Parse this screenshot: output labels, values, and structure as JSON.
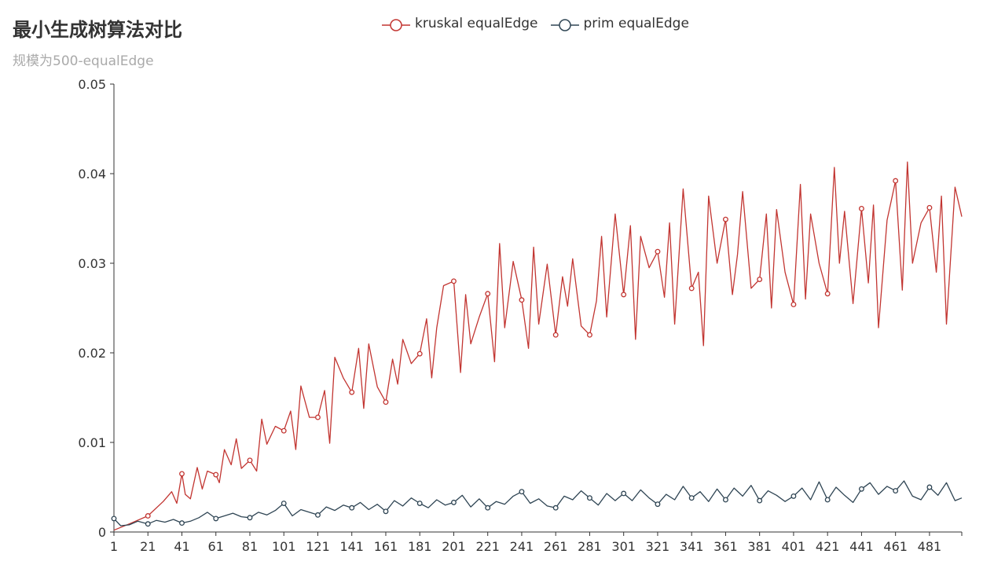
{
  "chart_data": {
    "type": "line",
    "title": "最小生成树算法对比",
    "subtitle": "规模为500-equalEdge",
    "legend_position": "top-center",
    "grid": false,
    "x_start": 1,
    "x_end": 500,
    "x_ticks": [
      1,
      21,
      41,
      61,
      81,
      101,
      121,
      141,
      161,
      181,
      201,
      221,
      241,
      261,
      281,
      301,
      321,
      341,
      361,
      381,
      401,
      421,
      441,
      461,
      481
    ],
    "y_ticks": [
      0,
      0.01,
      0.02,
      0.03,
      0.04,
      0.05
    ],
    "ylim": [
      0,
      0.05
    ],
    "series": [
      {
        "name": "kruskal equalEdge",
        "color": "#c23531",
        "x": [
          1,
          10,
          21,
          30,
          35,
          38,
          41,
          43,
          46,
          50,
          53,
          56,
          61,
          63,
          66,
          70,
          73,
          76,
          81,
          85,
          88,
          91,
          96,
          101,
          105,
          108,
          111,
          116,
          121,
          125,
          128,
          131,
          136,
          141,
          145,
          148,
          151,
          156,
          161,
          165,
          168,
          171,
          176,
          181,
          185,
          188,
          191,
          195,
          201,
          205,
          208,
          211,
          216,
          221,
          225,
          228,
          231,
          236,
          241,
          245,
          248,
          251,
          256,
          261,
          265,
          268,
          271,
          276,
          281,
          285,
          288,
          291,
          296,
          301,
          305,
          308,
          311,
          316,
          321,
          325,
          328,
          331,
          336,
          341,
          345,
          348,
          351,
          356,
          361,
          365,
          368,
          371,
          376,
          381,
          385,
          388,
          391,
          396,
          401,
          405,
          408,
          411,
          416,
          421,
          425,
          428,
          431,
          436,
          441,
          445,
          448,
          451,
          456,
          461,
          465,
          468,
          471,
          476,
          481,
          485,
          488,
          491,
          496,
          500
        ],
        "values": [
          0.0002,
          0.0009,
          0.0018,
          0.0034,
          0.0045,
          0.0032,
          0.0065,
          0.0042,
          0.0037,
          0.0072,
          0.0048,
          0.0068,
          0.0064,
          0.0055,
          0.0092,
          0.0075,
          0.0104,
          0.0071,
          0.008,
          0.0068,
          0.0126,
          0.0098,
          0.0118,
          0.0113,
          0.0135,
          0.0092,
          0.0163,
          0.0128,
          0.0128,
          0.0158,
          0.0099,
          0.0195,
          0.0172,
          0.0156,
          0.0205,
          0.0138,
          0.021,
          0.0162,
          0.0145,
          0.0193,
          0.0165,
          0.0215,
          0.0188,
          0.0199,
          0.0238,
          0.0172,
          0.0228,
          0.0275,
          0.028,
          0.0178,
          0.0265,
          0.021,
          0.024,
          0.0266,
          0.019,
          0.0322,
          0.0228,
          0.0302,
          0.0259,
          0.0205,
          0.0318,
          0.0232,
          0.0299,
          0.022,
          0.0285,
          0.0252,
          0.0305,
          0.023,
          0.022,
          0.0258,
          0.033,
          0.024,
          0.0355,
          0.0265,
          0.0342,
          0.0215,
          0.033,
          0.0295,
          0.0313,
          0.0262,
          0.0345,
          0.0232,
          0.0383,
          0.0272,
          0.029,
          0.0208,
          0.0375,
          0.03,
          0.0349,
          0.0265,
          0.031,
          0.038,
          0.0272,
          0.0282,
          0.0355,
          0.025,
          0.036,
          0.029,
          0.0254,
          0.0388,
          0.026,
          0.0355,
          0.03,
          0.0266,
          0.0407,
          0.03,
          0.0358,
          0.0255,
          0.0361,
          0.0278,
          0.0365,
          0.0228,
          0.0348,
          0.0392,
          0.027,
          0.0413,
          0.03,
          0.0345,
          0.0362,
          0.029,
          0.0375,
          0.0232,
          0.0385,
          0.0352
        ]
      },
      {
        "name": "prim equalEdge",
        "color": "#2f4554",
        "x": [
          1,
          5,
          10,
          15,
          21,
          26,
          31,
          36,
          41,
          46,
          51,
          56,
          61,
          66,
          71,
          76,
          81,
          86,
          91,
          96,
          101,
          106,
          111,
          116,
          121,
          126,
          131,
          136,
          141,
          146,
          151,
          156,
          161,
          166,
          171,
          176,
          181,
          186,
          191,
          196,
          201,
          206,
          211,
          216,
          221,
          226,
          231,
          236,
          241,
          246,
          251,
          256,
          261,
          266,
          271,
          276,
          281,
          286,
          291,
          296,
          301,
          306,
          311,
          316,
          321,
          326,
          331,
          336,
          341,
          346,
          351,
          356,
          361,
          366,
          371,
          376,
          381,
          386,
          391,
          396,
          401,
          406,
          411,
          416,
          421,
          426,
          431,
          436,
          441,
          446,
          451,
          456,
          461,
          466,
          471,
          476,
          481,
          486,
          491,
          496,
          500
        ],
        "values": [
          0.0015,
          0.0007,
          0.0008,
          0.0012,
          0.0009,
          0.0013,
          0.0011,
          0.0014,
          0.001,
          0.0012,
          0.0016,
          0.0022,
          0.0015,
          0.0018,
          0.0021,
          0.0017,
          0.0016,
          0.0022,
          0.0019,
          0.0024,
          0.0032,
          0.0018,
          0.0025,
          0.0022,
          0.0019,
          0.0028,
          0.0024,
          0.003,
          0.0027,
          0.0033,
          0.0025,
          0.0031,
          0.0023,
          0.0035,
          0.0029,
          0.0038,
          0.0032,
          0.0027,
          0.0036,
          0.003,
          0.0033,
          0.0041,
          0.0028,
          0.0037,
          0.0027,
          0.0034,
          0.0031,
          0.004,
          0.0045,
          0.0032,
          0.0037,
          0.0029,
          0.0027,
          0.004,
          0.0036,
          0.0046,
          0.0038,
          0.003,
          0.0043,
          0.0035,
          0.0043,
          0.0035,
          0.0047,
          0.0038,
          0.0031,
          0.0042,
          0.0036,
          0.0051,
          0.0038,
          0.0045,
          0.0034,
          0.0048,
          0.0036,
          0.0049,
          0.004,
          0.0052,
          0.0035,
          0.0046,
          0.0041,
          0.0034,
          0.004,
          0.0049,
          0.0036,
          0.0056,
          0.0036,
          0.005,
          0.0041,
          0.0033,
          0.0048,
          0.0055,
          0.0042,
          0.0051,
          0.0046,
          0.0057,
          0.004,
          0.0036,
          0.005,
          0.0041,
          0.0055,
          0.0035,
          0.0038
        ]
      }
    ]
  }
}
